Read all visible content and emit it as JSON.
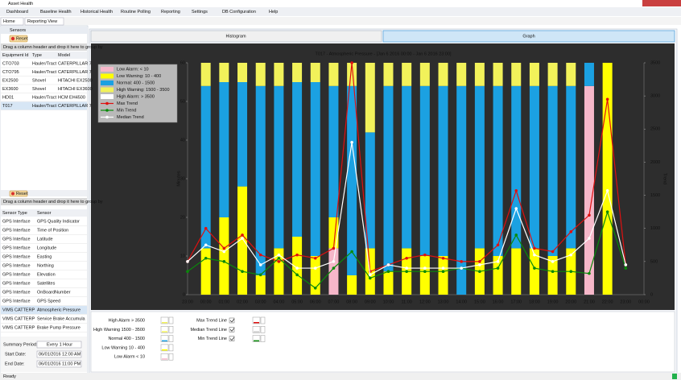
{
  "window": {
    "title": "Asset Health"
  },
  "menu": [
    "Dashboard",
    "Baseline Health",
    "Historical Health",
    "Routine Polling",
    "Reporting",
    "Settings",
    "DB Configuration",
    "Help"
  ],
  "tabs": [
    "Home",
    "Reporting View"
  ],
  "sensors_panel": {
    "title": "Sensors",
    "reset": "Reset",
    "group_hint": "Drag a column header and drop it here to group by",
    "columns": [
      "Equipment Id",
      "Type",
      "Model"
    ],
    "rows": [
      [
        "CTO703",
        "Hauler/Tract",
        "CATERPILLAR 7"
      ],
      [
        "CTO795",
        "Hauler/Tract",
        "CATERPILLAR 7"
      ],
      [
        "EX2500",
        "Shovel",
        "HITACHI EX2500"
      ],
      [
        "EX3600",
        "Shovel",
        "HITACHI EX3600"
      ],
      [
        "HD01",
        "Hauler/Tract",
        "HCM EH4500"
      ],
      [
        "T017",
        "Hauler/Tract",
        "CATERPILLAR 7"
      ]
    ]
  },
  "sensor_list": {
    "reset": "Reset",
    "group_hint": "Drag a column header and drop it here to group by",
    "columns": [
      "Sensor Type",
      "Sensor"
    ],
    "rows": [
      [
        "GPS Interface",
        "GPS Quality Indicator"
      ],
      [
        "GPS Interface",
        "Time of Position"
      ],
      [
        "GPS Interface",
        "Latitude"
      ],
      [
        "GPS Interface",
        "Longitude"
      ],
      [
        "GPS Interface",
        "Easting"
      ],
      [
        "GPS Interface",
        "Northing"
      ],
      [
        "GPS Interface",
        "Elevation"
      ],
      [
        "GPS Interface",
        "Satellites"
      ],
      [
        "GPS Interface",
        "OnBoardNumber"
      ],
      [
        "GPS Interface",
        "GPS Speed"
      ],
      [
        "VIMS CATTERP",
        "Atmospheric Pressure"
      ],
      [
        "VIMS CATTERP",
        "Service Brake Accumula"
      ],
      [
        "VIMS CATTERP",
        "Brake Pump Pressure"
      ]
    ]
  },
  "summary": {
    "period_label": "Summary Period:",
    "period": "Every 1 Hour",
    "start_label": "Start Date:",
    "start": "06/01/2016 12:00 AM",
    "end_label": "End Date:",
    "end": "06/01/2016 11:00 PM"
  },
  "view_tabs": [
    "Histogram",
    "Graph"
  ],
  "chart_data": {
    "type": "bar",
    "stacked": true,
    "title": "T017 - Atmospheric Pressure - [Jan 6 2016 00:00 - Jan 6 2016 23:00]",
    "ylabel": "Minutes",
    "y2label": "Trend",
    "categories": [
      "23:00",
      "00:00",
      "01:00",
      "02:00",
      "03:00",
      "04:00",
      "05:00",
      "06:00",
      "07:00",
      "08:00",
      "09:00",
      "10:00",
      "11:00",
      "12:00",
      "13:00",
      "14:00",
      "15:00",
      "16:00",
      "17:00",
      "18:00",
      "19:00",
      "20:00",
      "21:00",
      "22:00",
      "23:00",
      "00:00"
    ],
    "ylim": [
      0,
      60
    ],
    "yticks": [
      0,
      10,
      20,
      30,
      40,
      50,
      60
    ],
    "y2lim": [
      0,
      3500
    ],
    "y2ticks": [
      0,
      500,
      1000,
      1500,
      2000,
      2500,
      3000,
      3500
    ],
    "grid": false,
    "legend": "top-left",
    "series": [
      {
        "name": "Low Alarm: < 10",
        "color": "#f6b7c9",
        "type": "bar",
        "values": [
          null,
          0,
          0,
          0,
          0,
          0,
          0,
          0,
          12,
          0,
          0,
          0,
          0,
          0,
          0,
          0,
          0,
          0,
          0,
          0,
          0,
          0,
          54,
          0,
          null,
          null
        ]
      },
      {
        "name": "Low Warning: 10 - 400",
        "color": "#ffff00",
        "type": "bar",
        "values": [
          null,
          12,
          20,
          28,
          5,
          12,
          15,
          10,
          8,
          5,
          12,
          6,
          12,
          10,
          10,
          0,
          12,
          10,
          12,
          12,
          10,
          12,
          0,
          60,
          null,
          null
        ]
      },
      {
        "name": "Normal: 400 - 1500",
        "color": "#1ba1e2",
        "type": "bar",
        "values": [
          null,
          42,
          35,
          27,
          49,
          42,
          40,
          45,
          34,
          49,
          30,
          48,
          42,
          44,
          44,
          54,
          42,
          44,
          42,
          42,
          44,
          42,
          6,
          0,
          null,
          null
        ]
      },
      {
        "name": "High Warning: 1500 - 3500",
        "color": "#f2f25a",
        "type": "bar",
        "values": [
          null,
          6,
          5,
          5,
          6,
          6,
          5,
          5,
          6,
          6,
          18,
          6,
          6,
          6,
          6,
          6,
          6,
          6,
          6,
          6,
          6,
          6,
          0,
          0,
          null,
          null
        ]
      },
      {
        "name": "High Alarm: > 3500",
        "color": "#ffffff",
        "type": "bar",
        "values": [
          null,
          0,
          0,
          0,
          0,
          0,
          0,
          0,
          0,
          0,
          0,
          0,
          0,
          0,
          0,
          0,
          0,
          0,
          0,
          0,
          0,
          0,
          0,
          0,
          null,
          null
        ]
      },
      {
        "name": "Max Trend",
        "color": "#e01010",
        "type": "line",
        "axis": "y2",
        "values": [
          500,
          1000,
          700,
          900,
          600,
          500,
          600,
          550,
          700,
          3500,
          350,
          450,
          550,
          600,
          550,
          500,
          500,
          750,
          1570,
          700,
          650,
          950,
          1200,
          2950,
          450,
          null
        ]
      },
      {
        "name": "Min Trend",
        "color": "#0a8a0a",
        "type": "line",
        "axis": "y2",
        "values": [
          350,
          550,
          500,
          350,
          300,
          550,
          300,
          100,
          400,
          650,
          250,
          350,
          350,
          350,
          350,
          400,
          350,
          400,
          900,
          400,
          350,
          350,
          320,
          1250,
          400,
          null
        ]
      },
      {
        "name": "Median Trend",
        "color": "#ffffff",
        "type": "line",
        "axis": "y2",
        "values": [
          500,
          750,
          650,
          850,
          450,
          600,
          400,
          400,
          500,
          2300,
          300,
          450,
          400,
          400,
          400,
          400,
          450,
          500,
          1300,
          600,
          500,
          600,
          850,
          1570,
          450,
          null
        ]
      }
    ]
  },
  "thresholds": [
    "High Alarm > 3500",
    "High Warning 1500 - 3500",
    "Normal 400 - 1500",
    "Low Warning 10 - 400",
    "Low Alarm < 10"
  ],
  "trend_toggles": [
    "Max Trend Line",
    "Median Trend Line",
    "Min Trend Line"
  ],
  "status": "Ready"
}
